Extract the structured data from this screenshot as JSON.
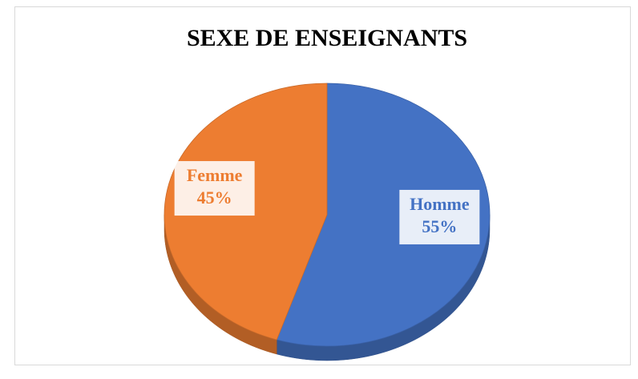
{
  "chart_data": {
    "type": "pie",
    "title": "SEXE DE ENSEIGNANTS",
    "categories": [
      "Homme",
      "Femme"
    ],
    "values": [
      55,
      45
    ],
    "value_labels": [
      "55%",
      "45%"
    ],
    "colors": [
      "#4472c4",
      "#ed7d31"
    ]
  }
}
